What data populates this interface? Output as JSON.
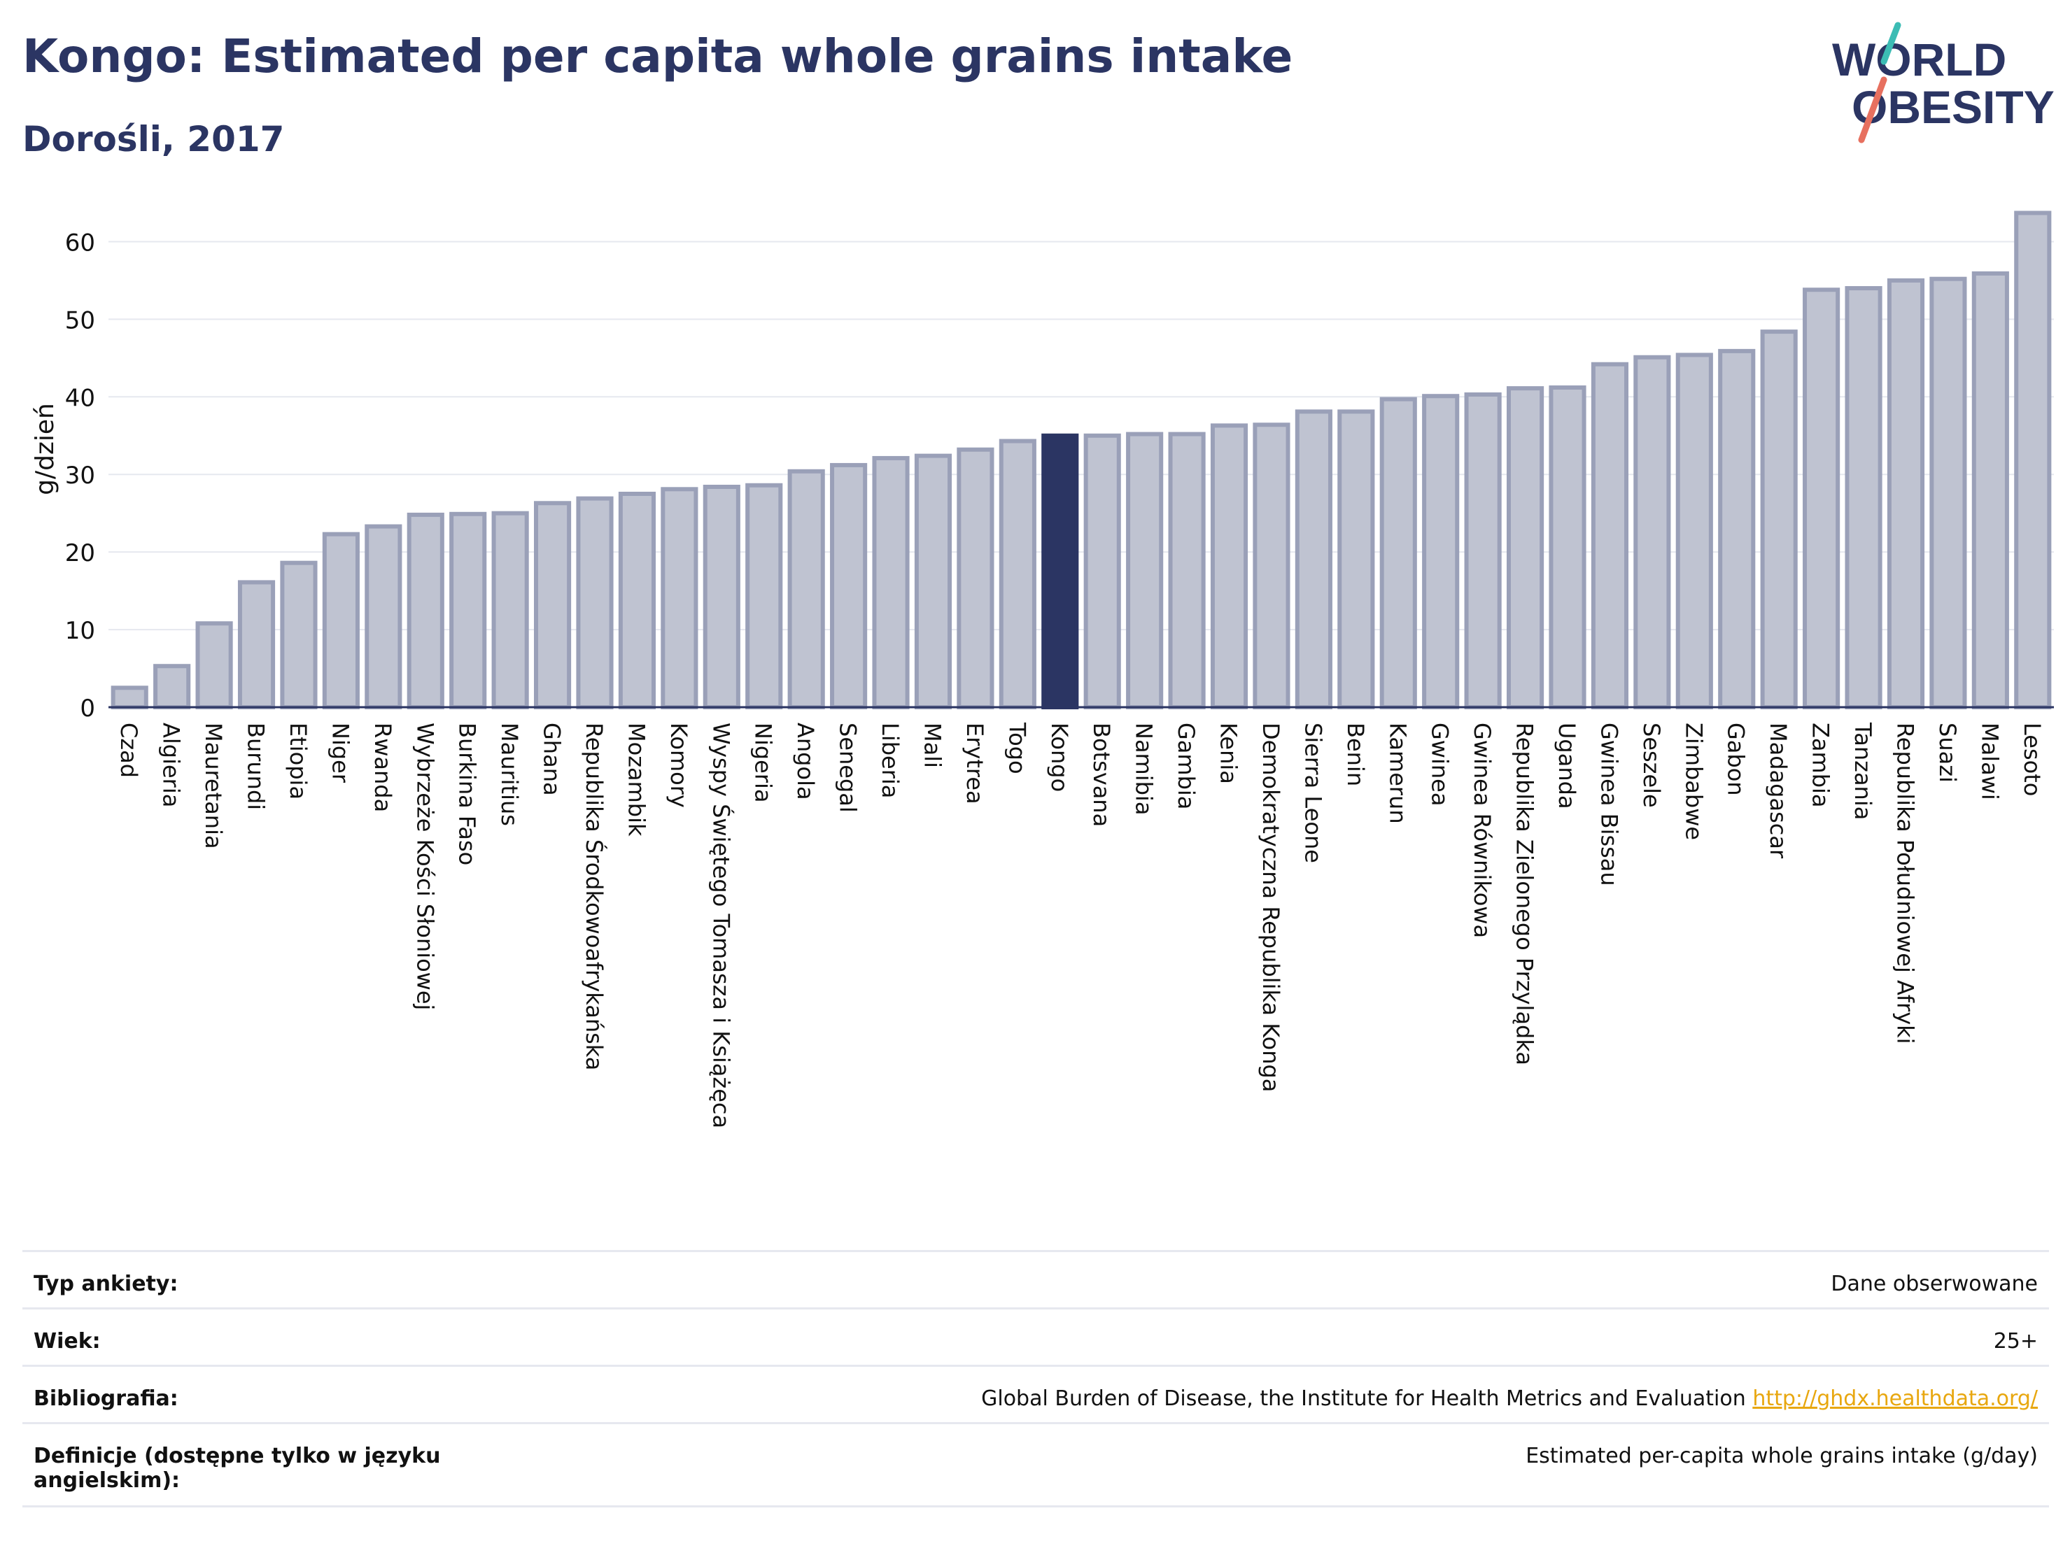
{
  "header": {
    "title": "Kongo: Estimated per capita whole grains intake",
    "subtitle": "Dorośli, 2017"
  },
  "logo": {
    "line1": "WORLD",
    "line2": "OBESITY"
  },
  "colors": {
    "bar": "#bfc3d1",
    "bar_stroke": "#9aa0b8",
    "highlight": "#2b3563",
    "title": "#2b3563",
    "link": "#e8a70f"
  },
  "chart_data": {
    "type": "bar",
    "ylabel": "g/dzień",
    "ylim": [
      0,
      65
    ],
    "yticks": [
      0,
      10,
      20,
      30,
      40,
      50,
      60
    ],
    "grid": true,
    "highlight": "Kongo",
    "categories": [
      "Czad",
      "Algieria",
      "Mauretania",
      "Burundi",
      "Etiopia",
      "Niger",
      "Rwanda",
      "Wybrzeże Kości Słoniowej",
      "Burkina Faso",
      "Mauritius",
      "Ghana",
      "Republika Środkowoafrykańska",
      "Mozambik",
      "Komory",
      "Wyspy Świętego Tomasza i Książęca",
      "Nigeria",
      "Angola",
      "Senegal",
      "Liberia",
      "Mali",
      "Erytrea",
      "Togo",
      "Kongo",
      "Botsvana",
      "Namibia",
      "Gambia",
      "Kenia",
      "Demokratyczna Republika Konga",
      "Sierra Leone",
      "Benin",
      "Kamerun",
      "Gwinea",
      "Gwinea Równikowa",
      "Republika Zielonego Przylądka",
      "Uganda",
      "Gwinea Bissau",
      "Seszele",
      "Zimbabwe",
      "Gabon",
      "Madagascar",
      "Zambia",
      "Tanzania",
      "Republika Południowej Afryki",
      "Suazi",
      "Malawi",
      "Lesoto"
    ],
    "values": [
      2.5,
      5.3,
      10.8,
      16.1,
      18.6,
      22.3,
      23.3,
      24.8,
      24.9,
      25.0,
      26.3,
      26.9,
      27.5,
      28.1,
      28.4,
      28.6,
      30.4,
      31.2,
      32.1,
      32.4,
      33.2,
      34.3,
      35.0,
      35.0,
      35.2,
      35.2,
      36.3,
      36.4,
      38.1,
      38.1,
      39.7,
      40.1,
      40.3,
      41.1,
      41.2,
      44.2,
      45.1,
      45.4,
      45.9,
      48.4,
      53.8,
      54.0,
      55.0,
      55.2,
      55.9,
      63.7
    ]
  },
  "info": [
    {
      "label": "Typ ankiety:",
      "value": "Dane obserwowane"
    },
    {
      "label": "Wiek:",
      "value": "25+"
    },
    {
      "label": "Bibliografia:",
      "value": "Global Burden of Disease, the Institute for Health Metrics and Evaluation",
      "link": "http://ghdx.healthdata.org/"
    },
    {
      "label": "Definicje (dostępne tylko w języku angielskim):",
      "value": "Estimated per-capita whole grains intake (g/day)"
    }
  ]
}
